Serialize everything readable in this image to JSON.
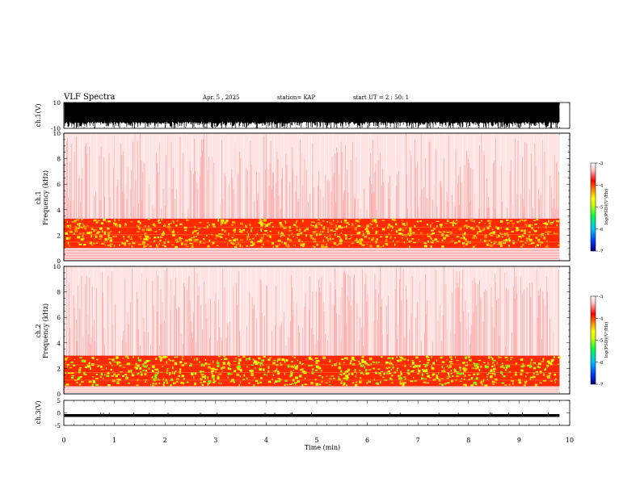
{
  "header": {
    "title": "VLF Spectra",
    "date": "Apr. 5 , 2025",
    "station": "station= KAP",
    "start": "start UT = 2 : 50: 1"
  },
  "chart_data": [
    {
      "type": "line",
      "panel": "ch1-waveform",
      "ylabel": "ch.1(V)",
      "ylim": [
        -10,
        10
      ],
      "ytick_labels": [
        "10",
        "-10"
      ],
      "xlim": [
        0,
        10
      ],
      "data_span_min": [
        0,
        9.8
      ],
      "description_values": {
        "upper_envelope": 10,
        "lower_envelope_typical": -5,
        "lower_envelope_min": -10
      }
    },
    {
      "type": "heatmap",
      "panel": "ch1-spectrogram",
      "ylabel": "Frequency (kHz)",
      "channel_label": "ch.1",
      "ylim": [
        0,
        10
      ],
      "ytick_labels": [
        "0",
        "2",
        "4",
        "6",
        "8",
        "10"
      ],
      "xlim": [
        0,
        10
      ],
      "data_span_min": [
        0,
        9.8
      ],
      "bands": [
        {
          "freq_khz": [
            0,
            1.0
          ],
          "level": "red-white mix"
        },
        {
          "freq_khz": [
            1.0,
            3.3
          ],
          "level": "yellow-orange intense"
        },
        {
          "freq_khz": [
            3.3,
            10
          ],
          "level": "sparse red"
        }
      ],
      "colorbar": {
        "label": "log(PSD)(V²/Hz)",
        "range": [
          -7,
          -3
        ],
        "tick_labels": [
          "-3",
          "-4",
          "-5",
          "-6",
          "-7"
        ]
      }
    },
    {
      "type": "heatmap",
      "panel": "ch2-spectrogram",
      "ylabel": "Frequency (kHz)",
      "channel_label": "ch.2",
      "ylim": [
        0,
        10
      ],
      "ytick_labels": [
        "0",
        "2",
        "4",
        "6",
        "8",
        "10"
      ],
      "xlim": [
        0,
        10
      ],
      "data_span_min": [
        0,
        9.8
      ],
      "bands": [
        {
          "freq_khz": [
            0,
            0.6
          ],
          "level": "red-white mix"
        },
        {
          "freq_khz": [
            0.6,
            3.0
          ],
          "level": "yellow-green intense"
        },
        {
          "freq_khz": [
            3.0,
            10
          ],
          "level": "sparse red"
        }
      ],
      "colorbar": {
        "label": "log(PSD)(V²/Hz)",
        "range": [
          -7,
          -3
        ],
        "tick_labels": [
          "-3",
          "-4",
          "-5",
          "-6",
          "-7"
        ]
      }
    },
    {
      "type": "line",
      "panel": "ch3-waveform",
      "ylabel": "ch.3(V)",
      "ylim": [
        -5,
        5
      ],
      "ytick_labels": [
        "5",
        "0",
        "-5"
      ],
      "xlim": [
        0,
        10
      ],
      "data_span_min": [
        0,
        9.8
      ],
      "description_values": {
        "upper_envelope": -0.5,
        "lower_envelope": -1.6
      }
    }
  ],
  "xaxis": {
    "label": "Time (min)",
    "tick_labels": [
      "0",
      "1",
      "2",
      "3",
      "4",
      "5",
      "6",
      "7",
      "8",
      "9",
      "10"
    ]
  },
  "colorbar_label": "log(PSD)(V²/Hz)",
  "colors": {
    "colormap": [
      "#000080",
      "#0050ff",
      "#00c8ff",
      "#00ff40",
      "#c8ff00",
      "#ffff00",
      "#ff8000",
      "#ff0000",
      "#ffdede",
      "#ffffff"
    ]
  }
}
